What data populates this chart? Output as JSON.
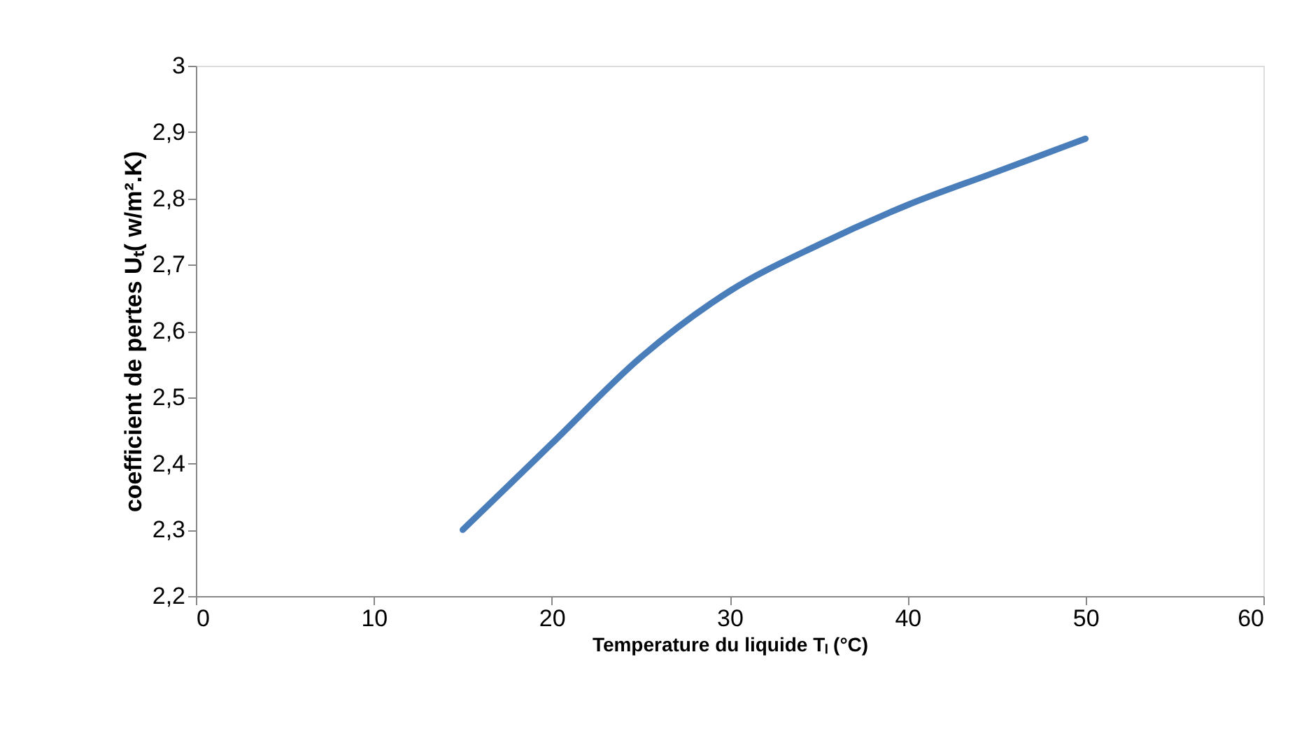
{
  "chart_data": {
    "type": "line",
    "xlabel": "Temperature du liquide Tₗ (°C)",
    "ylabel": "coefficient de pertes Uₜ( w/m².K)",
    "x": [
      15,
      20,
      25,
      30,
      35,
      40,
      45,
      50
    ],
    "series": [
      {
        "color": "#4a7ebb",
        "values": [
          2.3,
          2.43,
          2.56,
          2.66,
          2.73,
          2.79,
          2.84,
          2.89
        ]
      }
    ],
    "xlim": [
      0,
      60
    ],
    "xticks": [
      0,
      10,
      20,
      30,
      40,
      50,
      60
    ],
    "ylim": [
      2.2,
      3
    ],
    "yticks": [
      {
        "value": 2.2,
        "label": "2,2"
      },
      {
        "value": 2.3,
        "label": "2,3"
      },
      {
        "value": 2.4,
        "label": "2,4"
      },
      {
        "value": 2.5,
        "label": "2,5"
      },
      {
        "value": 2.6,
        "label": "2,6"
      },
      {
        "value": 2.7,
        "label": "2,7"
      },
      {
        "value": 2.8,
        "label": "2,8"
      },
      {
        "value": 2.9,
        "label": "2,9"
      },
      {
        "value": 3,
        "label": "3"
      }
    ],
    "grid": false,
    "marker": "none",
    "line_style": "solid"
  }
}
